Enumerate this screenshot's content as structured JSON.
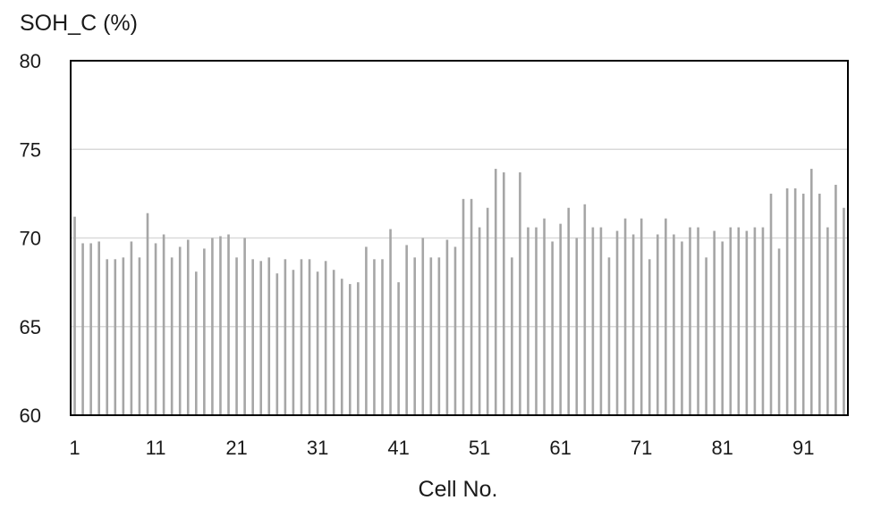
{
  "chart_data": {
    "type": "bar",
    "ylabel": "SOH_C (%)",
    "xlabel": "Cell No.",
    "ylim": [
      60,
      80
    ],
    "yticks": [
      60,
      65,
      70,
      75,
      80
    ],
    "xticks": [
      "1",
      "11",
      "21",
      "31",
      "41",
      "51",
      "61",
      "71",
      "81",
      "91"
    ],
    "grid": true,
    "bar_color": "#a6a6a6",
    "gridline_color": "#d9d9d9",
    "categories": [
      1,
      2,
      3,
      4,
      5,
      6,
      7,
      8,
      9,
      10,
      11,
      12,
      13,
      14,
      15,
      16,
      17,
      18,
      19,
      20,
      21,
      22,
      23,
      24,
      25,
      26,
      27,
      28,
      29,
      30,
      31,
      32,
      33,
      34,
      35,
      36,
      37,
      38,
      39,
      40,
      41,
      42,
      43,
      44,
      45,
      46,
      47,
      48,
      49,
      50,
      51,
      52,
      53,
      54,
      55,
      56,
      57,
      58,
      59,
      60,
      61,
      62,
      63,
      64,
      65,
      66,
      67,
      68,
      69,
      70,
      71,
      72,
      73,
      74,
      75,
      76,
      77,
      78,
      79,
      80,
      81,
      82,
      83,
      84,
      85,
      86,
      87,
      88,
      89,
      90,
      91,
      92,
      93,
      94,
      95,
      96
    ],
    "values": [
      71.2,
      69.7,
      69.7,
      69.8,
      68.8,
      68.8,
      68.9,
      69.8,
      68.9,
      71.4,
      69.7,
      70.2,
      68.9,
      69.5,
      69.9,
      68.1,
      69.4,
      70.0,
      70.1,
      70.2,
      68.9,
      70.0,
      68.8,
      68.7,
      68.9,
      68.0,
      68.8,
      68.2,
      68.8,
      68.8,
      68.1,
      68.7,
      68.2,
      67.7,
      67.4,
      67.5,
      69.5,
      68.8,
      68.8,
      70.5,
      67.5,
      69.6,
      68.9,
      70.0,
      68.9,
      68.9,
      69.9,
      69.5,
      72.2,
      72.2,
      70.6,
      71.7,
      73.9,
      73.7,
      68.9,
      73.7,
      70.6,
      70.6,
      71.1,
      69.8,
      70.8,
      71.7,
      70.0,
      71.9,
      70.6,
      70.6,
      68.9,
      70.4,
      71.1,
      70.2,
      71.1,
      68.8,
      70.2,
      71.1,
      70.2,
      69.8,
      70.6,
      70.6,
      68.9,
      70.4,
      69.8,
      70.6,
      70.6,
      70.4,
      70.6,
      70.6,
      72.5,
      69.4,
      72.8,
      72.8,
      72.5,
      73.9,
      72.5,
      70.6,
      73.0,
      71.7
    ]
  }
}
